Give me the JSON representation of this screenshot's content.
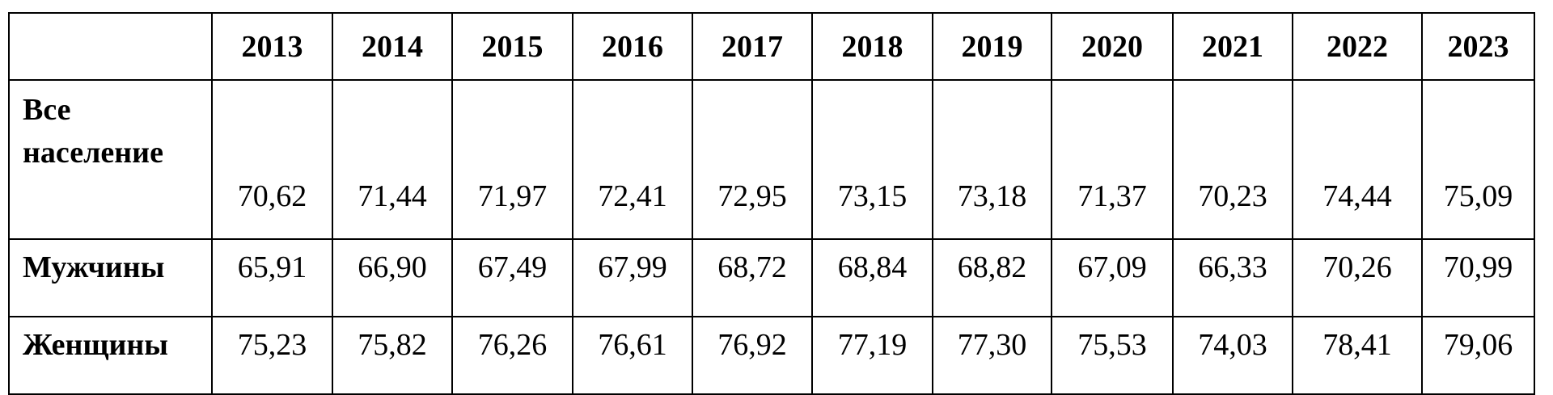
{
  "table": {
    "columns": [
      "2013",
      "2014",
      "2015",
      "2016",
      "2017",
      "2018",
      "2019",
      "2020",
      "2021",
      "2022",
      "2023"
    ],
    "rows": [
      {
        "label": "Все население",
        "values": [
          "70,62",
          "71,44",
          "71,97",
          "72,41",
          "72,95",
          "73,15",
          "73,18",
          "71,37",
          "70,23",
          "74,44",
          "75,09"
        ]
      },
      {
        "label": "Мужчины",
        "values": [
          "65,91",
          "66,90",
          "67,49",
          "67,99",
          "68,72",
          "68,84",
          "68,82",
          "67,09",
          "66,33",
          "70,26",
          "70,99"
        ]
      },
      {
        "label": "Женщины",
        "values": [
          "75,23",
          "75,82",
          "76,26",
          "76,61",
          "76,92",
          "77,19",
          "77,30",
          "75,53",
          "74,03",
          "78,41",
          "79,06"
        ]
      }
    ]
  }
}
